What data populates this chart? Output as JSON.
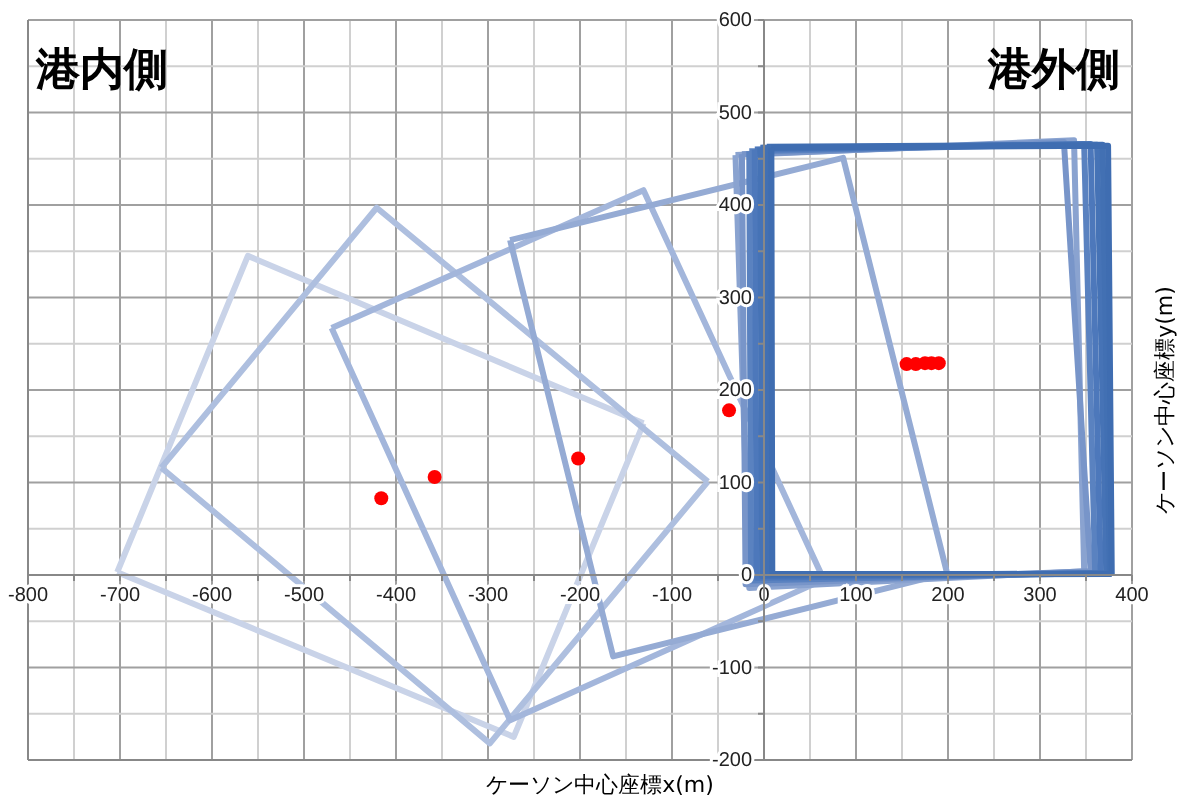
{
  "chart_data": {
    "type": "line",
    "xlabel": "ケーソン中心座標x(m)",
    "ylabel": "ケーソン中心座標y(m)",
    "annotations": [
      "港内側",
      "港外側"
    ],
    "xlim": [
      -800,
      400
    ],
    "ylim": [
      -200,
      600
    ],
    "xticks": [
      -800,
      {
        "value": -750,
        "label": null
      },
      -700,
      {
        "value": -650,
        "label": null
      },
      -600,
      {
        "value": -550,
        "label": null
      },
      -500,
      {
        "value": -450,
        "label": null
      },
      -400,
      {
        "value": -350,
        "label": null
      },
      -300,
      {
        "value": -250,
        "label": null
      },
      -200,
      {
        "value": -150,
        "label": null
      },
      -100,
      {
        "value": -50,
        "label": null
      },
      0,
      {
        "value": 50,
        "label": null
      },
      100,
      {
        "value": 150,
        "label": null
      },
      200,
      {
        "value": 250,
        "label": null
      },
      300,
      {
        "value": 350,
        "label": null
      },
      400
    ],
    "yticks": [
      -200,
      {
        "value": -150,
        "label": null
      },
      -100,
      {
        "value": -50,
        "label": null
      },
      0,
      {
        "value": 50,
        "label": null
      },
      100,
      {
        "value": 150,
        "label": null
      },
      200,
      {
        "value": 250,
        "label": null
      },
      300,
      {
        "value": 350,
        "label": null
      },
      400,
      {
        "value": 450,
        "label": null
      },
      500,
      {
        "value": 550,
        "label": null
      },
      600
    ],
    "grid": true,
    "series": [
      {
        "color": "#c9d3e8",
        "x": [
          -703,
          -561,
          -131
        ],
        "values": [
          3,
          345,
          164
        ]
      },
      {
        "color": "#c9d3e8",
        "x": [
          -703,
          -272,
          -131
        ],
        "values": [
          3,
          -175,
          164
        ]
      },
      {
        "color": "#aebfdf",
        "x": [
          -655,
          -421,
          -61
        ],
        "values": [
          116,
          397,
          101
        ]
      },
      {
        "color": "#aebfdf",
        "x": [
          -655,
          -298,
          -61
        ],
        "values": [
          116,
          -182,
          101
        ]
      },
      {
        "color": "#a3b6db",
        "x": [
          -470,
          -131,
          65
        ],
        "values": [
          267,
          416,
          -5
        ]
      },
      {
        "color": "#a3b6db",
        "x": [
          -470,
          -276,
          65
        ],
        "values": [
          267,
          -157,
          -5
        ]
      },
      {
        "color": "#95abd4",
        "x": [
          -276,
          86,
          199
        ],
        "values": [
          362,
          451,
          2
        ]
      },
      {
        "color": "#95abd4",
        "x": [
          -276,
          -164,
          199
        ],
        "values": [
          362,
          -88,
          2
        ]
      },
      {
        "color": "#8aa3d0",
        "x": [
          -31,
          337,
          348
        ],
        "values": [
          454,
          470,
          4
        ]
      },
      {
        "color": "#8aa3d0",
        "x": [
          -31,
          -16,
          348
        ],
        "values": [
          454,
          -14,
          4
        ]
      },
      {
        "color": "#7895c9",
        "x": [
          -24,
          326,
          355
        ],
        "values": [
          455,
          468,
          4
        ]
      },
      {
        "color": "#7895c9",
        "x": [
          -24,
          -20,
          355
        ],
        "values": [
          455,
          -10,
          4
        ]
      },
      {
        "color": "#5a82c0",
        "x": [
          -16,
          348,
          360
        ],
        "values": [
          458,
          466,
          2
        ]
      },
      {
        "color": "#5a82c0",
        "x": [
          -16,
          -14,
          360
        ],
        "values": [
          458,
          -6,
          2
        ]
      },
      {
        "color": "#4d78bb",
        "x": [
          -10,
          355,
          366
        ],
        "values": [
          460,
          466,
          2
        ]
      },
      {
        "color": "#4d78bb",
        "x": [
          -10,
          -8,
          366
        ],
        "values": [
          460,
          -3,
          2
        ]
      },
      {
        "color": "#4673b6",
        "x": [
          -4,
          362,
          372
        ],
        "values": [
          462,
          465,
          2
        ]
      },
      {
        "color": "#4673b6",
        "x": [
          -4,
          -2,
          372
        ],
        "values": [
          462,
          -1,
          2
        ]
      },
      {
        "color": "#4270b3",
        "x": [
          3,
          368,
          376
        ],
        "values": [
          463,
          465,
          1
        ]
      },
      {
        "color": "#4270b3",
        "x": [
          3,
          4,
          376
        ],
        "values": [
          463,
          0,
          1
        ]
      },
      {
        "color": "#3f6db1",
        "x": [
          8,
          374,
          378
        ],
        "values": [
          462,
          464,
          1
        ]
      },
      {
        "color": "#3f6db1",
        "x": [
          8,
          9,
          378
        ],
        "values": [
          462,
          1,
          1
        ]
      },
      {
        "type": "scatter",
        "color": "#ff0000",
        "x": [
          -416,
          -358,
          -202,
          -38,
          155,
          165,
          175,
          182,
          190
        ],
        "values": [
          83,
          106,
          126,
          178,
          228,
          228,
          229,
          229,
          229
        ]
      }
    ]
  }
}
